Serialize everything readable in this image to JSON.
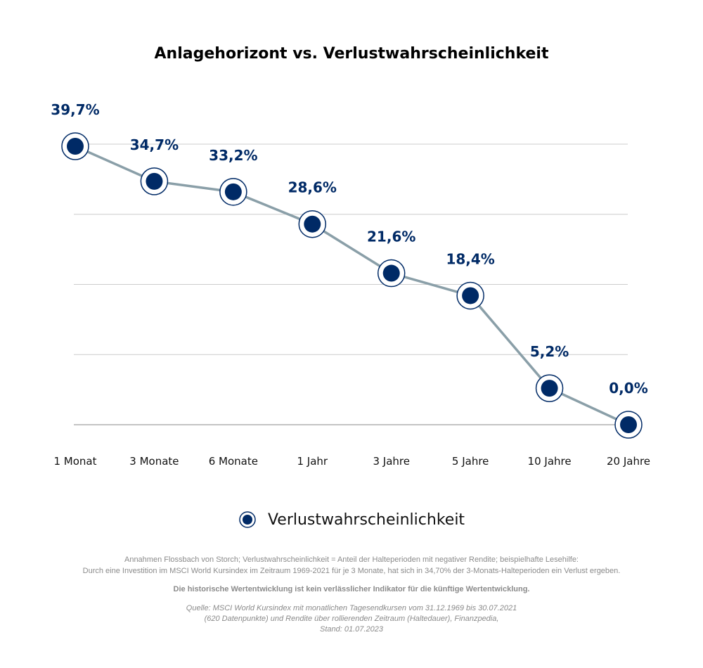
{
  "chart_data": {
    "type": "line",
    "title": "Anlagehorizont vs. Verlustwahrscheinlichkeit",
    "categories": [
      "1 Monat",
      "3 Monate",
      "6 Monate",
      "1 Jahr",
      "3 Jahre",
      "5 Jahre",
      "10 Jahre",
      "20 Jahre"
    ],
    "series": [
      {
        "name": "Verlustwahrscheinlichkeit",
        "values": [
          39.7,
          34.7,
          33.2,
          28.6,
          21.6,
          18.4,
          5.2,
          0.0
        ],
        "labels": [
          "39,7%",
          "34,7%",
          "33,2%",
          "28,6%",
          "21,6%",
          "18,4%",
          "5,2%",
          "0,0%"
        ]
      }
    ],
    "ylim": [
      0,
      40
    ],
    "grid": true,
    "legend": "bottom",
    "colors": {
      "line": "#8a9fa8",
      "marker": "#002a66",
      "grid": "#cccccc",
      "axis": "#888888"
    }
  },
  "notes": {
    "line1": "Annahmen Flossbach von Storch; Verlustwahrscheinlichkeit = Anteil der Halteperioden mit negativer Rendite; beispielhafte Lesehilfe:",
    "line2": "Durch eine Investition im MSCI World Kursindex im Zeitraum 1969-2021 für je 3 Monate, hat sich in 34,70% der 3-Monats-Halteperioden ein Verlust ergeben.",
    "disclaimer": "Die historische Wertentwicklung ist kein verlässlicher Indikator für die künftige Wertentwicklung.",
    "source1": "Quelle: MSCI World Kursindex mit monatlichen Tagesendkursen vom 31.12.1969 bis 30.07.2021",
    "source2": "(620 Datenpunkte) und Rendite über rollierenden Zeitraum (Haltedauer), Finanzpedia,",
    "source3": "Stand: 01.07.2023"
  }
}
